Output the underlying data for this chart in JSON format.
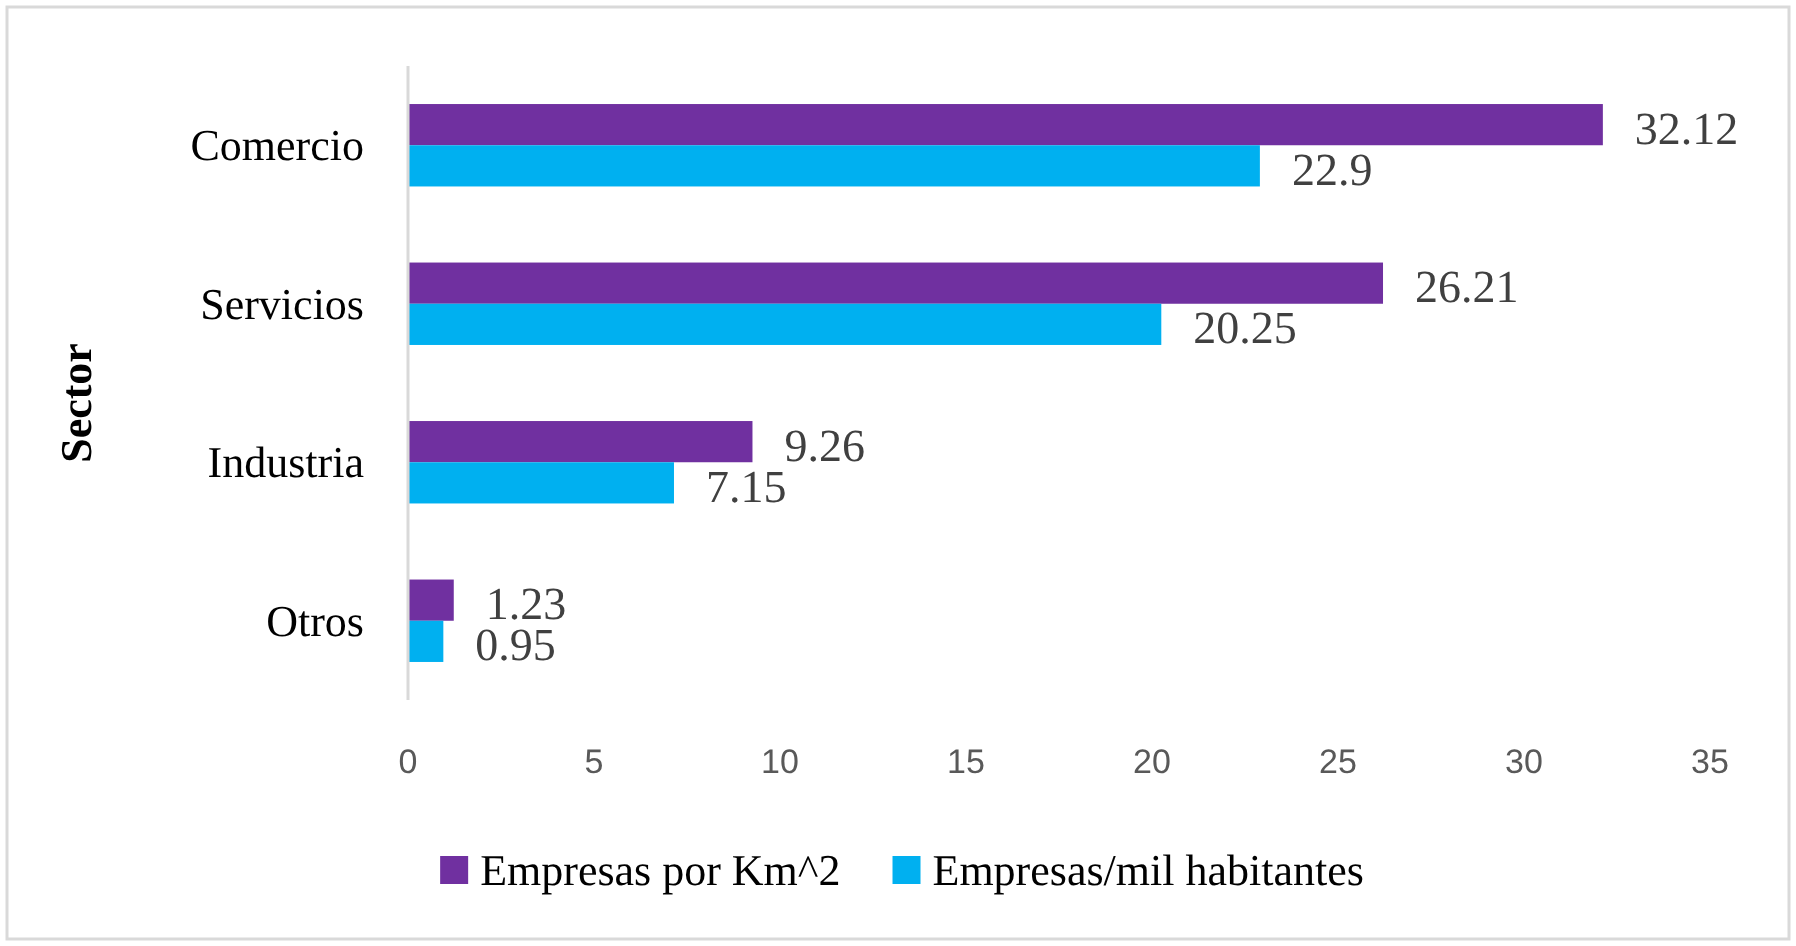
{
  "chart_data": {
    "type": "bar",
    "orientation": "horizontal",
    "ylabel": "Sector",
    "categories": [
      "Comercio",
      "Servicios",
      "Industria",
      "Otros"
    ],
    "series": [
      {
        "name": "Empresas por Km^2",
        "color": "#7030a0",
        "values": [
          32.12,
          26.21,
          9.26,
          1.23
        ]
      },
      {
        "name": "Empresas/mil habitantes",
        "color": "#00b0f0",
        "values": [
          22.9,
          20.25,
          7.15,
          0.95
        ]
      }
    ],
    "xlim": [
      0,
      35
    ],
    "xticks": [
      0,
      5,
      10,
      15,
      20,
      25,
      30,
      35
    ],
    "grid": false,
    "legend": "bottom",
    "data_labels": true
  }
}
